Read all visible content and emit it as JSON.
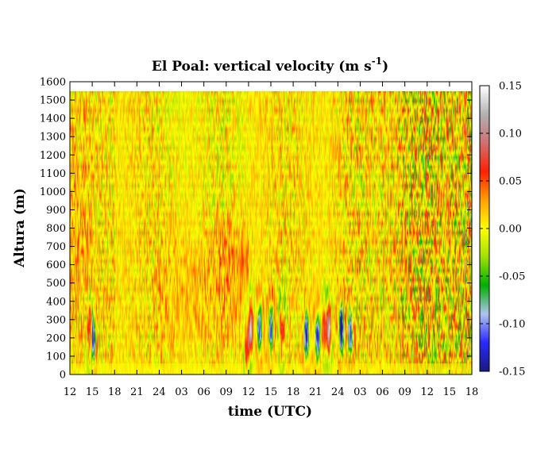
{
  "chart_data": {
    "type": "heatmap",
    "title": "El Poal: vertical velocity (m s",
    "title_sup": "-1",
    "title_end": ")",
    "xlabel": "time (UTC)",
    "ylabel": "Altura (m)",
    "x_ticks": [
      "12",
      "15",
      "18",
      "21",
      "24",
      "03",
      "06",
      "09",
      "12",
      "15",
      "18",
      "21",
      "24",
      "03",
      "06",
      "09",
      "12",
      "15",
      "18"
    ],
    "x_range_hours": [
      0,
      54
    ],
    "y_ticks": [
      0,
      100,
      200,
      300,
      400,
      500,
      600,
      700,
      800,
      900,
      1000,
      1100,
      1200,
      1300,
      1400,
      1500,
      1600
    ],
    "ylim": [
      0,
      1600
    ],
    "data_top_m": 1550,
    "colorbar": {
      "ticks": [
        "0.15",
        "0.10",
        "0.05",
        "0.00",
        "-0.05",
        "-0.10",
        "-0.15"
      ],
      "range": [
        -0.15,
        0.15
      ],
      "colors": [
        "#1a1a80",
        "#2a2aff",
        "#b0c4ee",
        "#00b000",
        "#a0e000",
        "#ffff00",
        "#ffa000",
        "#ff2000",
        "#d07070",
        "#b0b0b0",
        "#ffffff"
      ]
    },
    "features": [
      {
        "t": 3.1,
        "h": 200,
        "w": -0.12
      },
      {
        "t": 2.6,
        "h": 220,
        "w": 0.06
      },
      {
        "t": 24.3,
        "h": 250,
        "w": 0.14
      },
      {
        "t": 23.8,
        "h": 150,
        "w": 0.07
      },
      {
        "t": 25.5,
        "h": 250,
        "w": -0.12
      },
      {
        "t": 27.0,
        "h": 250,
        "w": -0.11
      },
      {
        "t": 28.5,
        "h": 250,
        "w": 0.06
      },
      {
        "t": 31.8,
        "h": 220,
        "w": -0.14
      },
      {
        "t": 33.3,
        "h": 200,
        "w": -0.13
      },
      {
        "t": 34.8,
        "h": 250,
        "w": 0.14
      },
      {
        "t": 34.2,
        "h": 250,
        "w": 0.07
      },
      {
        "t": 36.5,
        "h": 250,
        "w": -0.15
      },
      {
        "t": 37.7,
        "h": 230,
        "w": -0.12
      }
    ]
  }
}
